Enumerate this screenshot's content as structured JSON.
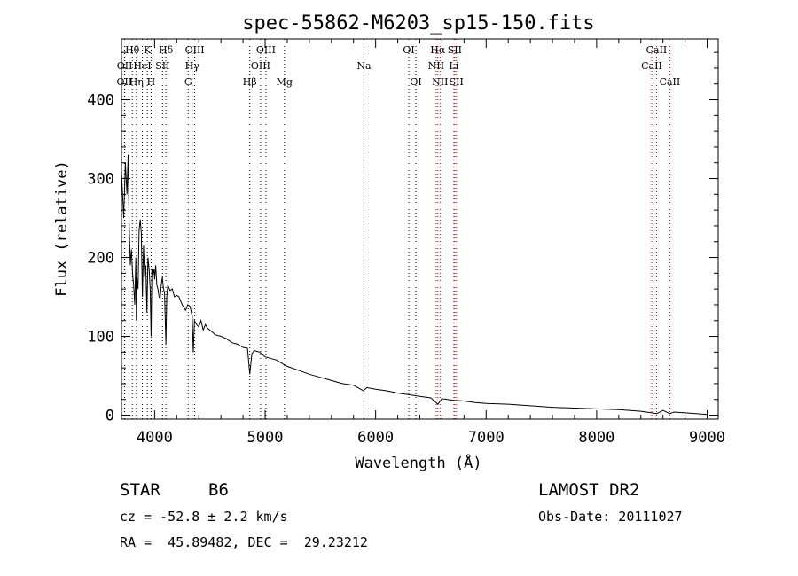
{
  "chart_data": {
    "type": "line",
    "title": "spec-55862-M6203_sp15-150.fits",
    "xlabel": "Wavelength (Å)",
    "ylabel": "Flux (relative)",
    "xlim": [
      3700,
      9100
    ],
    "ylim": [
      -5,
      477
    ],
    "xticks": [
      4000,
      5000,
      6000,
      7000,
      8000,
      9000
    ],
    "yticks": [
      0,
      100,
      200,
      300,
      400
    ],
    "grid": false,
    "series": [
      {
        "color": "#000000",
        "x": [
          3700,
          3720,
          3735,
          3750,
          3760,
          3770,
          3780,
          3790,
          3800,
          3810,
          3820,
          3830,
          3835,
          3840,
          3850,
          3860,
          3870,
          3880,
          3889,
          3900,
          3910,
          3920,
          3930,
          3940,
          3950,
          3960,
          3968,
          3975,
          3985,
          3995,
          4000,
          4010,
          4020,
          4030,
          4040,
          4050,
          4060,
          4070,
          4080,
          4090,
          4102,
          4110,
          4120,
          4140,
          4160,
          4180,
          4200,
          4220,
          4250,
          4280,
          4300,
          4320,
          4340,
          4350,
          4360,
          4380,
          4400,
          4420,
          4440,
          4460,
          4480,
          4500,
          4550,
          4600,
          4650,
          4700,
          4750,
          4800,
          4840,
          4861,
          4880,
          4900,
          4950,
          5000,
          5100,
          5200,
          5300,
          5400,
          5500,
          5600,
          5700,
          5800,
          5890,
          5920,
          6000,
          6100,
          6200,
          6300,
          6400,
          6500,
          6563,
          6600,
          6700,
          6800,
          6900,
          7000,
          7200,
          7400,
          7600,
          7800,
          8000,
          8200,
          8400,
          8500,
          8542,
          8600,
          8662,
          8700,
          8800,
          8900,
          9000
        ],
        "y": [
          310,
          250,
          320,
          280,
          330,
          240,
          190,
          210,
          180,
          165,
          140,
          200,
          120,
          175,
          160,
          235,
          248,
          230,
          150,
          215,
          175,
          190,
          130,
          200,
          185,
          160,
          100,
          185,
          178,
          185,
          172,
          190,
          165,
          160,
          150,
          148,
          165,
          175,
          160,
          155,
          90,
          150,
          165,
          158,
          160,
          150,
          152,
          150,
          140,
          133,
          140,
          138,
          125,
          80,
          120,
          115,
          112,
          120,
          108,
          115,
          110,
          108,
          102,
          100,
          97,
          92,
          90,
          86,
          85,
          52,
          78,
          82,
          80,
          74,
          70,
          62,
          57,
          52,
          48,
          44,
          40,
          38,
          31,
          35,
          33,
          31,
          28,
          26,
          24,
          22,
          14,
          21,
          19,
          18,
          16,
          15,
          14,
          12,
          10,
          9,
          8,
          7,
          5,
          3,
          2,
          6,
          2,
          4,
          3,
          2,
          1
        ]
      }
    ],
    "lines": [
      {
        "label": "OII",
        "x": 3727,
        "row": 2,
        "color": "#000000"
      },
      {
        "label": "OII",
        "x": 3729,
        "row": 1,
        "color": "#000000"
      },
      {
        "label": "Hθ",
        "x": 3798,
        "row": 0,
        "color": "#000000"
      },
      {
        "label": "Hη",
        "x": 3835,
        "row": 2,
        "color": "#000000"
      },
      {
        "label": "HeI",
        "x": 3889,
        "row": 1,
        "color": "#000000"
      },
      {
        "label": "K",
        "x": 3934,
        "row": 0,
        "color": "#000000"
      },
      {
        "label": "H",
        "x": 3968,
        "row": 2,
        "color": "#000000"
      },
      {
        "label": "SII",
        "x": 4072,
        "row": 1,
        "color": "#000000"
      },
      {
        "label": "Hδ",
        "x": 4102,
        "row": 0,
        "color": "#000000"
      },
      {
        "label": "G",
        "x": 4304,
        "row": 2,
        "color": "#000000"
      },
      {
        "label": "Hγ",
        "x": 4340,
        "row": 1,
        "color": "#000000"
      },
      {
        "label": "OIII",
        "x": 4363,
        "row": 0,
        "color": "#000000"
      },
      {
        "label": "Hβ",
        "x": 4861,
        "row": 2,
        "color": "#000000"
      },
      {
        "label": "OIII",
        "x": 4959,
        "row": 1,
        "color": "#000000"
      },
      {
        "label": "OIII",
        "x": 5007,
        "row": 0,
        "color": "#000000"
      },
      {
        "label": "Mg",
        "x": 5175,
        "row": 2,
        "color": "#000000"
      },
      {
        "label": "Na",
        "x": 5894,
        "row": 1,
        "color": "#000000"
      },
      {
        "label": "OI",
        "x": 6300,
        "row": 0,
        "color": "#000000"
      },
      {
        "label": "OI",
        "x": 6364,
        "row": 2,
        "color": "#000000"
      },
      {
        "label": "NII",
        "x": 6548,
        "row": 1,
        "color": "#cc0000"
      },
      {
        "label": "Hα",
        "x": 6563,
        "row": 0,
        "color": "#cc0000"
      },
      {
        "label": "NII",
        "x": 6583,
        "row": 2,
        "color": "#cc0000"
      },
      {
        "label": "Li",
        "x": 6708,
        "row": 1,
        "color": "#cc0000"
      },
      {
        "label": "SII",
        "x": 6716,
        "row": 0,
        "color": "#cc0000"
      },
      {
        "label": "SII",
        "x": 6731,
        "row": 2,
        "color": "#cc0000"
      },
      {
        "label": "CaII",
        "x": 8498,
        "row": 1,
        "color": "#cc0000"
      },
      {
        "label": "CaII",
        "x": 8542,
        "row": 0,
        "color": "#cc0000"
      },
      {
        "label": "CaII",
        "x": 8662,
        "row": 2,
        "color": "#cc0000"
      }
    ]
  },
  "info": {
    "object_class": "STAR",
    "subclass": "B6",
    "survey": "LAMOST DR2",
    "cz": "cz = -52.8 ± 2.2 km/s",
    "obs_date": "Obs-Date: 20111027",
    "coords": "RA =  45.89482, DEC =  29.23212"
  }
}
